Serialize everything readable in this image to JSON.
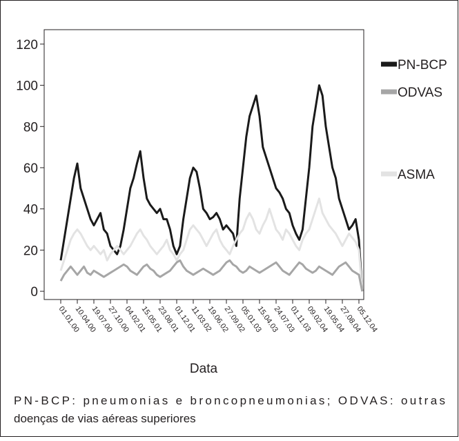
{
  "chart_data": {
    "type": "line",
    "x_label": "Data",
    "caption": [
      "PN-BCP: pneumonias e broncopneumonias; ODVAS: outras",
      "doenças de vias aéreas superiores"
    ],
    "categories": [
      "01.01.00",
      null,
      null,
      null,
      null,
      "10.04.00",
      null,
      null,
      null,
      null,
      "19.07.00",
      null,
      null,
      null,
      null,
      "27.10.00",
      null,
      null,
      null,
      null,
      "04.02.01",
      null,
      null,
      null,
      null,
      "15.05.01",
      null,
      null,
      null,
      null,
      "23.08.01",
      null,
      null,
      null,
      null,
      "01.12.01",
      null,
      null,
      null,
      null,
      "11.03.02",
      null,
      null,
      null,
      null,
      "19.06.02",
      null,
      null,
      null,
      null,
      "27.09.02",
      null,
      null,
      null,
      null,
      "05.01.03",
      null,
      null,
      null,
      null,
      "15.04.03",
      null,
      null,
      null,
      null,
      "24.07.03",
      null,
      null,
      null,
      null,
      "01.11.03",
      null,
      null,
      null,
      null,
      "09.02.04",
      null,
      null,
      null,
      null,
      "19.05.04",
      null,
      null,
      null,
      null,
      "27.08.04",
      null,
      null,
      null,
      null,
      "05.12.04",
      null
    ],
    "series": [
      {
        "name": "PN-BCP",
        "color": "#1a1a1a",
        "values": [
          15,
          25,
          35,
          45,
          55,
          62,
          50,
          45,
          40,
          35,
          32,
          35,
          38,
          30,
          28,
          22,
          20,
          18,
          22,
          30,
          40,
          50,
          55,
          62,
          68,
          55,
          45,
          42,
          40,
          38,
          40,
          35,
          35,
          30,
          22,
          18,
          22,
          35,
          45,
          55,
          60,
          58,
          50,
          40,
          38,
          35,
          36,
          38,
          35,
          30,
          32,
          30,
          28,
          22,
          45,
          60,
          75,
          85,
          90,
          95,
          85,
          70,
          65,
          60,
          55,
          50,
          48,
          45,
          40,
          38,
          32,
          28,
          25,
          30,
          45,
          60,
          80,
          90,
          100,
          95,
          80,
          70,
          60,
          55,
          45,
          40,
          35,
          30,
          32,
          35,
          25,
          0
        ]
      },
      {
        "name": "ODVAS",
        "color": "#a6a6a6",
        "values": [
          5,
          8,
          10,
          12,
          10,
          8,
          10,
          12,
          9,
          8,
          10,
          9,
          8,
          7,
          8,
          9,
          10,
          11,
          12,
          13,
          12,
          10,
          9,
          8,
          10,
          12,
          13,
          11,
          10,
          8,
          7,
          8,
          9,
          10,
          12,
          14,
          15,
          12,
          10,
          9,
          8,
          9,
          10,
          11,
          10,
          9,
          8,
          9,
          10,
          12,
          14,
          15,
          13,
          12,
          10,
          9,
          10,
          12,
          11,
          10,
          9,
          10,
          11,
          12,
          13,
          14,
          12,
          10,
          9,
          8,
          10,
          12,
          14,
          13,
          11,
          10,
          9,
          10,
          12,
          11,
          10,
          9,
          8,
          10,
          12,
          13,
          14,
          12,
          10,
          9,
          8,
          0
        ]
      },
      {
        "name": "ASMA",
        "color": "#e3e3e3",
        "values": [
          10,
          15,
          20,
          25,
          28,
          30,
          28,
          25,
          22,
          20,
          22,
          20,
          18,
          20,
          15,
          18,
          20,
          22,
          20,
          18,
          20,
          22,
          25,
          28,
          30,
          27,
          25,
          22,
          20,
          18,
          20,
          22,
          25,
          20,
          18,
          15,
          18,
          20,
          25,
          30,
          32,
          30,
          28,
          25,
          22,
          25,
          28,
          30,
          25,
          22,
          20,
          18,
          22,
          25,
          28,
          30,
          35,
          38,
          35,
          30,
          28,
          32,
          35,
          40,
          35,
          30,
          28,
          25,
          30,
          28,
          25,
          22,
          20,
          25,
          28,
          30,
          35,
          40,
          45,
          38,
          35,
          32,
          30,
          28,
          25,
          22,
          25,
          28,
          26,
          24,
          20,
          0
        ]
      }
    ],
    "ylim": [
      -4,
      127
    ],
    "yticks": [
      0,
      20,
      40,
      60,
      80,
      100,
      120
    ],
    "grid": false
  }
}
